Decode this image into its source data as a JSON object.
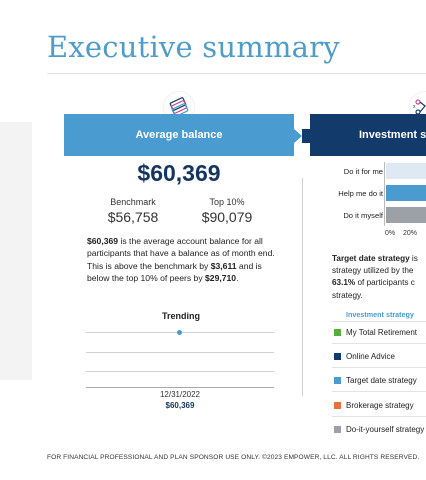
{
  "page": {
    "title": "Executive summary"
  },
  "average_balance": {
    "banner": "Average balance",
    "icon": "stacked-bills-icon",
    "amount": "$60,369",
    "benchmark_label": "Benchmark",
    "benchmark_value": "$56,758",
    "top10_label": "Top 10%",
    "top10_value": "$90,079",
    "para": {
      "amount": "$60,369",
      "text1": " is the average account balance for all participants that have a balance as of month end. This is above the benchmark by ",
      "diff": "$3,611",
      "text2": " and is below the top 10% of peers by ",
      "diff2": "$29,710",
      "text3": "."
    },
    "trending": {
      "title": "Trending",
      "date": "12/31/2022",
      "value": "$60,369",
      "point_value": 60369
    }
  },
  "investment_strategy": {
    "banner": "Investment stra",
    "icon": "strategy-diagram-icon",
    "chart_data": {
      "type": "bar",
      "orientation": "horizontal",
      "categories": [
        "Do it for me",
        "Help me do it",
        "Do it myself"
      ],
      "tick_labels": [
        "0%",
        "20%"
      ],
      "bar_colors": [
        "#dfe9f3",
        "#4a9bd0",
        "#9ba1a6"
      ]
    },
    "para": {
      "lead": "Target date strategy",
      "line1": " is",
      "line2": "strategy utilized by the",
      "pct": "63.1%",
      "line3": " of participants c",
      "line4": "strategy."
    },
    "legend": {
      "header": "Investment strategy",
      "items": [
        {
          "label": "My Total Retirement",
          "color": "#5aad3c"
        },
        {
          "label": "Online Advice",
          "color": "#123b6b"
        },
        {
          "label": "Target date strategy",
          "color": "#4a9bd0"
        },
        {
          "label": "Brokerage strategy",
          "color": "#e8703a"
        },
        {
          "label": "Do-it-yourself strategy",
          "color": "#9ba1a6"
        }
      ]
    }
  },
  "footer": "FOR FINANCIAL PROFESSIONAL AND PLAN SPONSOR USE ONLY. ©2023 EMPOWER, LLC. ALL RIGHTS RESERVED."
}
